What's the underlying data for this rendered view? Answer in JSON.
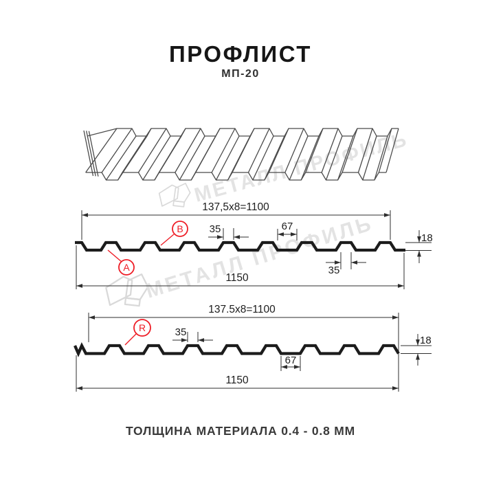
{
  "title": "ПРОФЛИСТ",
  "subtitle": "МП-20",
  "footer": {
    "thickness_note": "ТОЛЩИНА МАТЕРИАЛА 0.4 - 0.8 ММ"
  },
  "watermark": {
    "text": "МЕТАЛЛ ПРОФИЛЬ"
  },
  "colors": {
    "red": "#ee1c25",
    "ink": "#1c1c1c",
    "dim": "#2e2e2e",
    "sheet": "#4a4a4a",
    "watermark_text": "#e3e3e3",
    "watermark_logo": "#d9d9d9"
  },
  "section1": {
    "dim_width_top": "137,5x8=1100",
    "dim_rib_top": "35",
    "dim_pan": "67",
    "dim_height": "18",
    "dim_rib_bottom": "35",
    "dim_total": "1150",
    "label_a": "A",
    "label_b": "B"
  },
  "section2": {
    "dim_width_top": "137.5x8=1100",
    "dim_rib_top": "35",
    "dim_pan": "67",
    "dim_height": "18",
    "dim_total": "1150",
    "label_r": "R"
  }
}
